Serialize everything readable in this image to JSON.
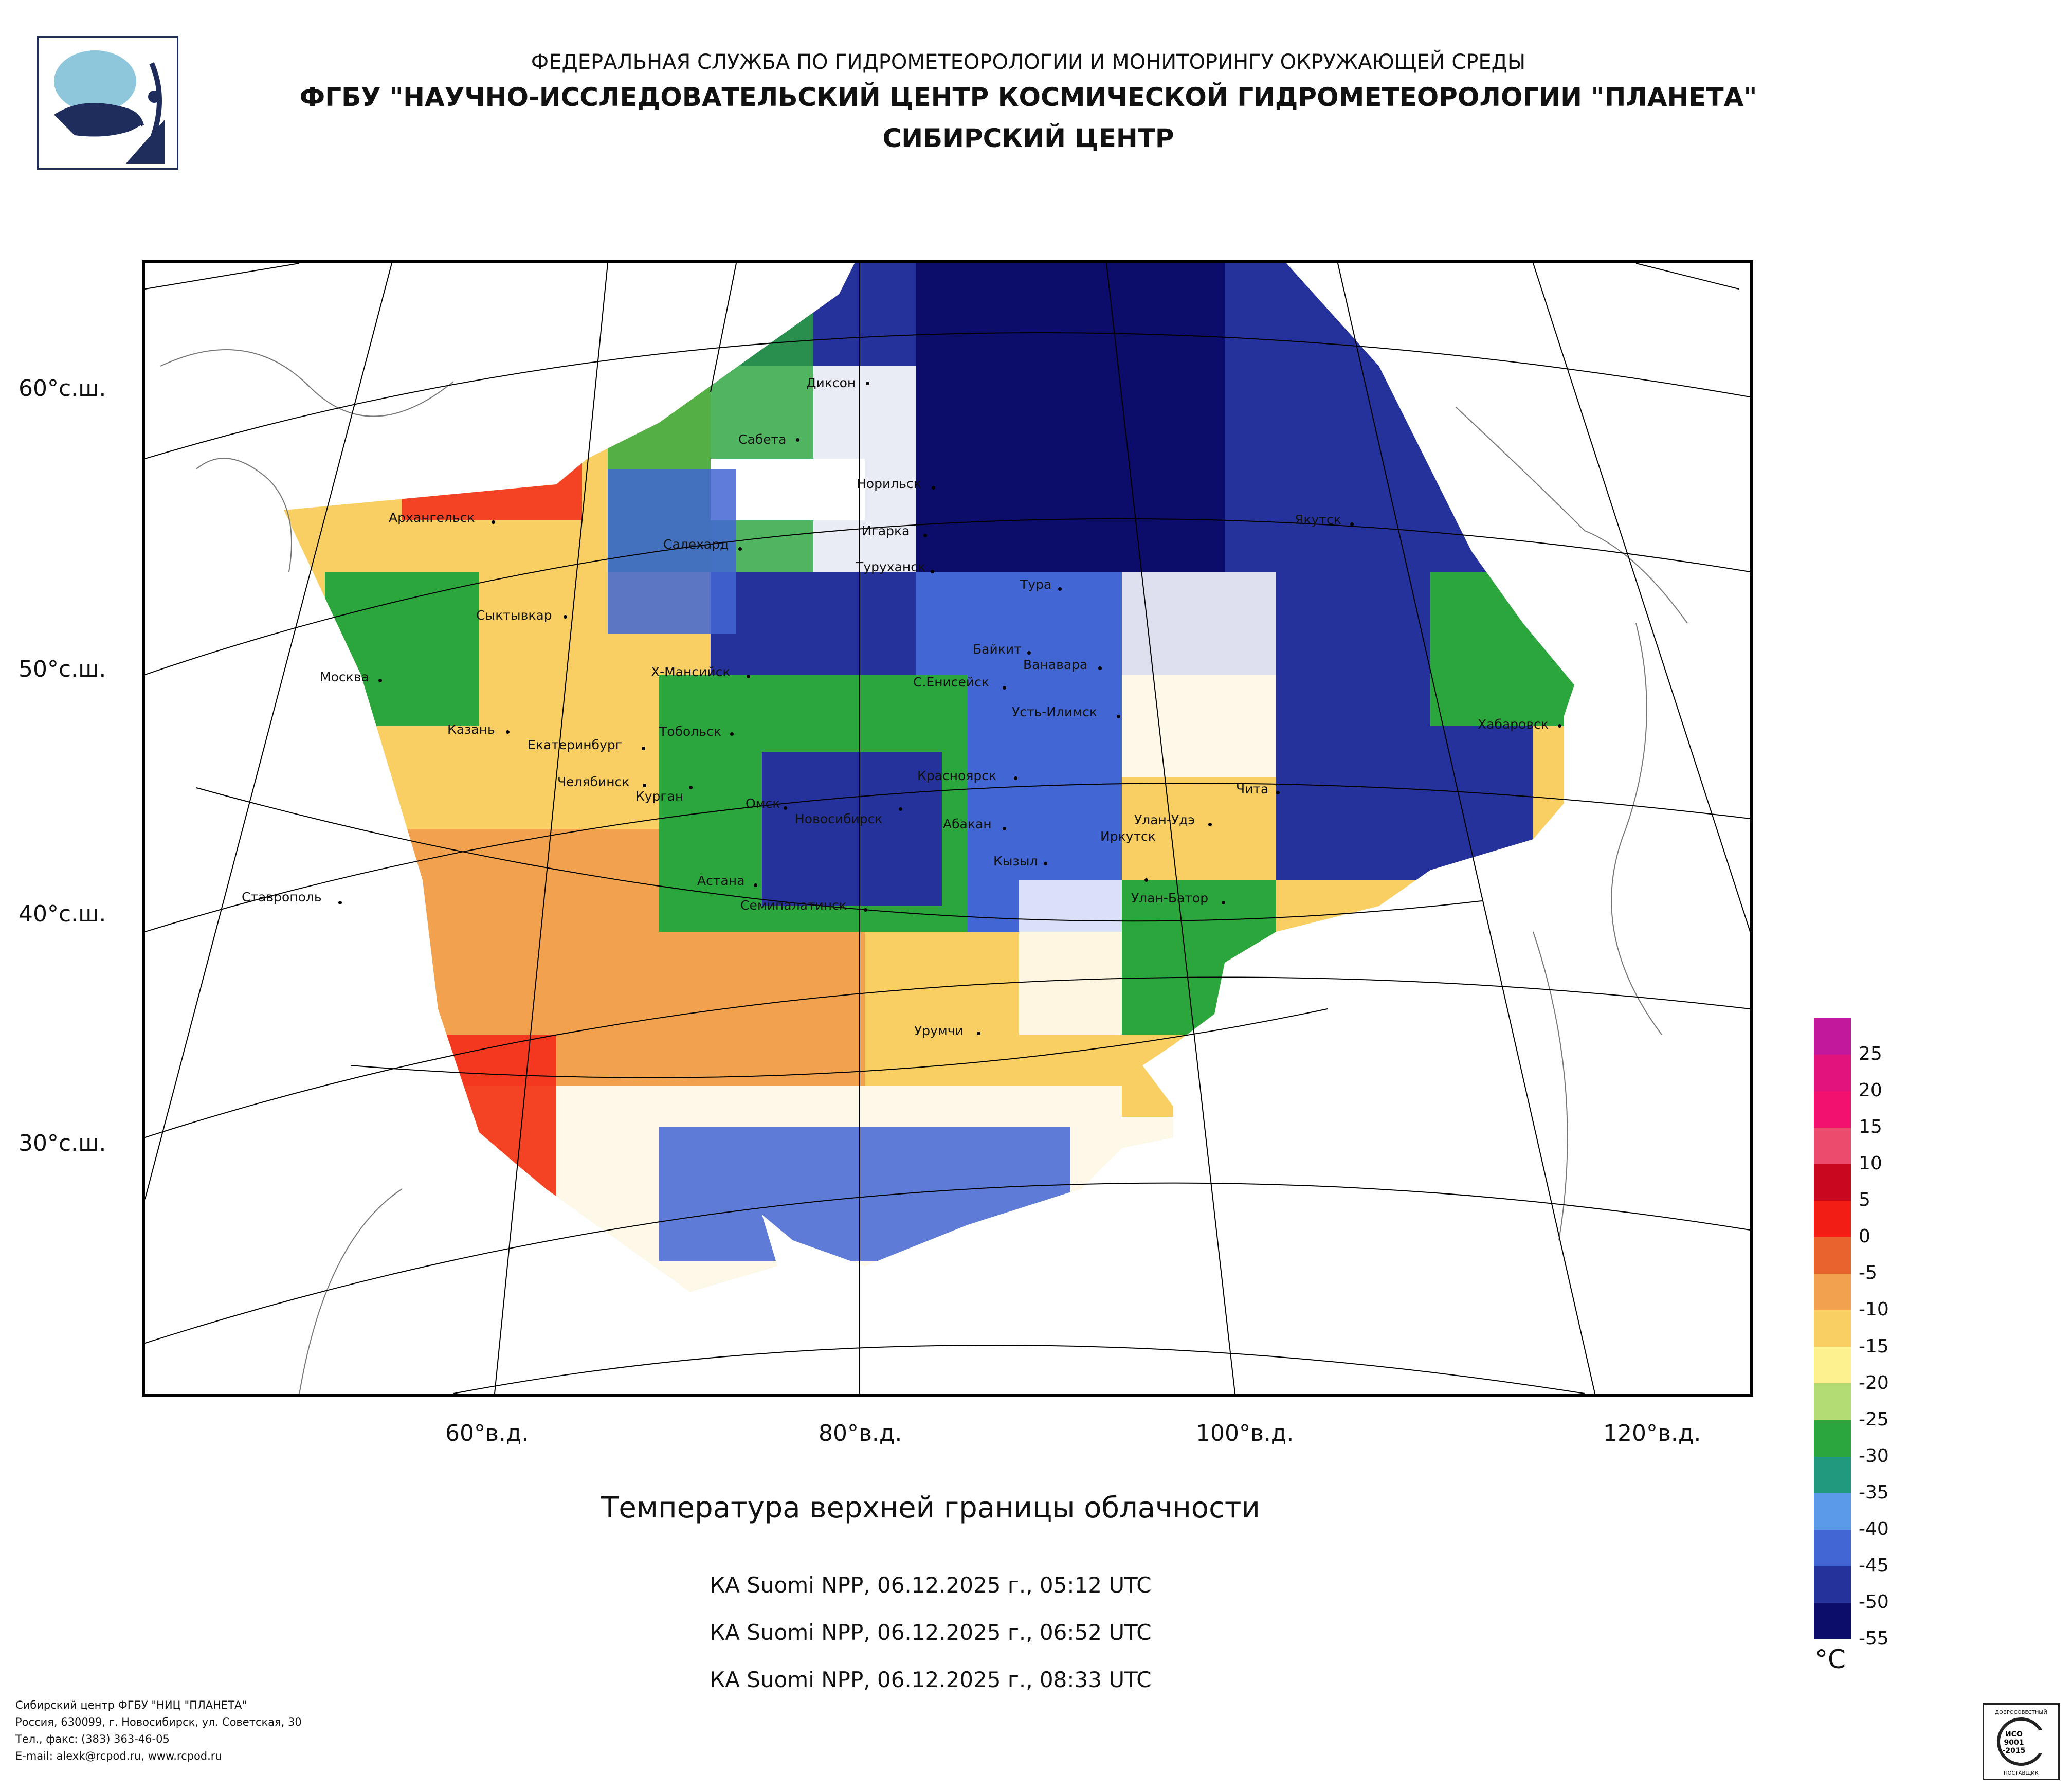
{
  "header": {
    "line1": "ФЕДЕРАЛЬНАЯ СЛУЖБА ПО ГИДРОМЕТЕОРОЛОГИИ И МОНИТОРИНГУ ОКРУЖАЮЩЕЙ СРЕДЫ",
    "line2": "ФГБУ \"НАУЧНО-ИССЛЕДОВАТЕЛЬСКИЙ ЦЕНТР КОСМИЧЕСКОЙ ГИДРОМЕТЕОРОЛОГИИ \"ПЛАНЕТА\"",
    "line3": "СИБИРСКИЙ ЦЕНТР"
  },
  "map": {
    "lat_labels": [
      "60°с.ш.",
      "50°с.ш.",
      "40°с.ш.",
      "30°с.ш."
    ],
    "lon_labels": [
      "60°в.д.",
      "80°в.д.",
      "100°в.д.",
      "120°в.д."
    ],
    "cities": [
      "Диксон",
      "Сабета",
      "Норильск",
      "Архангельск",
      "Салехард",
      "Игарка",
      "Туруханск",
      "Якутск",
      "Тура",
      "Сыктывкар",
      "Байкит",
      "Ванавара",
      "Москва",
      "Х-Мансийск",
      "С.Енисейск",
      "Усть-Илимск",
      "Хабаровск",
      "Казань",
      "Тобольск",
      "Екатеринбург",
      "Красноярск",
      "Челябинск",
      "Курган",
      "Омск",
      "Новосибирск",
      "Чита",
      "Абакан",
      "Улан-Удэ",
      "Иркутск",
      "Кызыл",
      "Астана",
      "Ставрополь",
      "Семипалатинск",
      "Улан-Батор",
      "Урумчи"
    ]
  },
  "title": "Температура верхней границы облачности",
  "satellite_passes": [
    "КА Suomi NPP, 06.12.2025 г., 05:12 UTC",
    "КА Suomi NPP, 06.12.2025 г., 06:52 UTC",
    "КА Suomi NPP, 06.12.2025 г., 08:33 UTC"
  ],
  "legend": {
    "unit": "°C",
    "labels": [
      "25",
      "20",
      "15",
      "10",
      "5",
      "0",
      "-5",
      "-10",
      "-15",
      "-20",
      "-25",
      "-30",
      "-35",
      "-40",
      "-45",
      "-50",
      "-55"
    ],
    "colors": [
      "#c2189c",
      "#e0147c",
      "#f2116e",
      "#ec4b6e",
      "#c8081e",
      "#f21e14",
      "#e8642c",
      "#f2a24e",
      "#f9cf63",
      "#fdf08e",
      "#b3dc74",
      "#2aa63c",
      "#20997e",
      "#5a9ae6",
      "#4266d4",
      "#26329c",
      "#0c0c6a"
    ]
  },
  "footer": {
    "line1": "Сибирский центр ФГБУ \"НИЦ \"ПЛАНЕТА\"",
    "line2": "Россия, 630099, г. Новосибирск, ул. Советская, 30",
    "line3": "Тел., факс: (383) 363-46-05",
    "line4": "E-mail: alexk@rcpod.ru, www.rcpod.ru"
  },
  "iso_badge": {
    "top": "ДОБРОСОВЕСТНЫЙ",
    "mid1": "ИСО",
    "mid2": "9001",
    "mid3": "-2015",
    "bottom": "ПОСТАВЩИК"
  }
}
